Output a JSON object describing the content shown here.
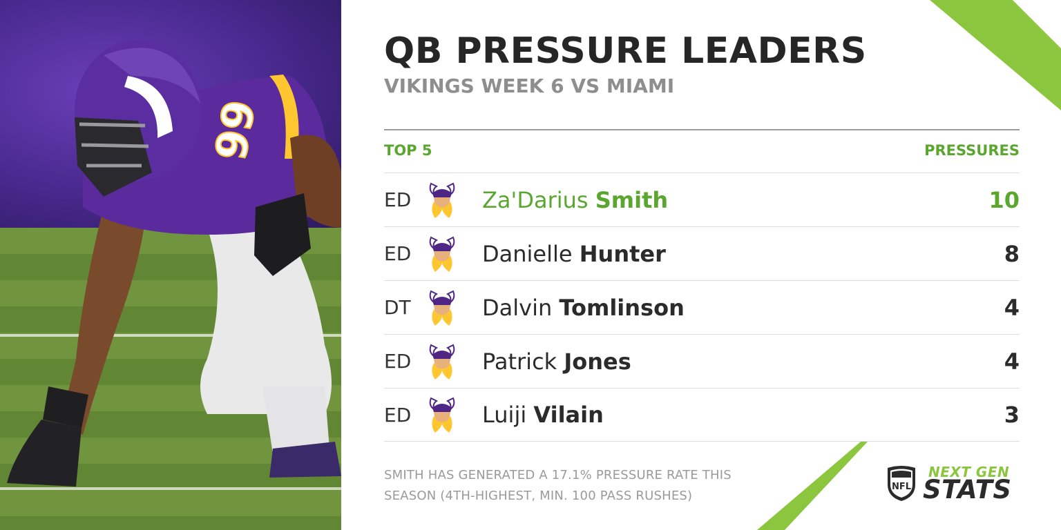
{
  "header": {
    "title": "QB PRESSURE LEADERS",
    "subtitle": "VIKINGS WEEK 6 VS MIAMI"
  },
  "table": {
    "left_header": "TOP 5",
    "right_header": "PRESSURES",
    "rows": [
      {
        "position": "ED",
        "first": "Za'Darius",
        "last": "Smith",
        "value": "10",
        "highlight": true
      },
      {
        "position": "ED",
        "first": "Danielle",
        "last": "Hunter",
        "value": "8",
        "highlight": false
      },
      {
        "position": "DT",
        "first": "Dalvin",
        "last": "Tomlinson",
        "value": "4",
        "highlight": false
      },
      {
        "position": "ED",
        "first": "Patrick",
        "last": "Jones",
        "value": "4",
        "highlight": false
      },
      {
        "position": "ED",
        "first": "Luiji",
        "last": "Vilain",
        "value": "3",
        "highlight": false
      }
    ]
  },
  "footnote": {
    "line1": "SMITH HAS GENERATED A 17.1% PRESSURE RATE THIS",
    "line2": "SEASON (4TH-HIGHEST, MIN. 100 PASS RUSHES)"
  },
  "branding": {
    "ngs_top": "NEXT GEN",
    "ngs_bottom": "STATS",
    "shield_text": "NFL",
    "team_logo_icon": "vikings-head-icon",
    "jersey_number": "99"
  },
  "colors": {
    "accent_green": "#5aa62f",
    "lime": "#8cc63e",
    "vikings_purple": "#4f2683",
    "vikings_gold": "#ffc62f"
  }
}
